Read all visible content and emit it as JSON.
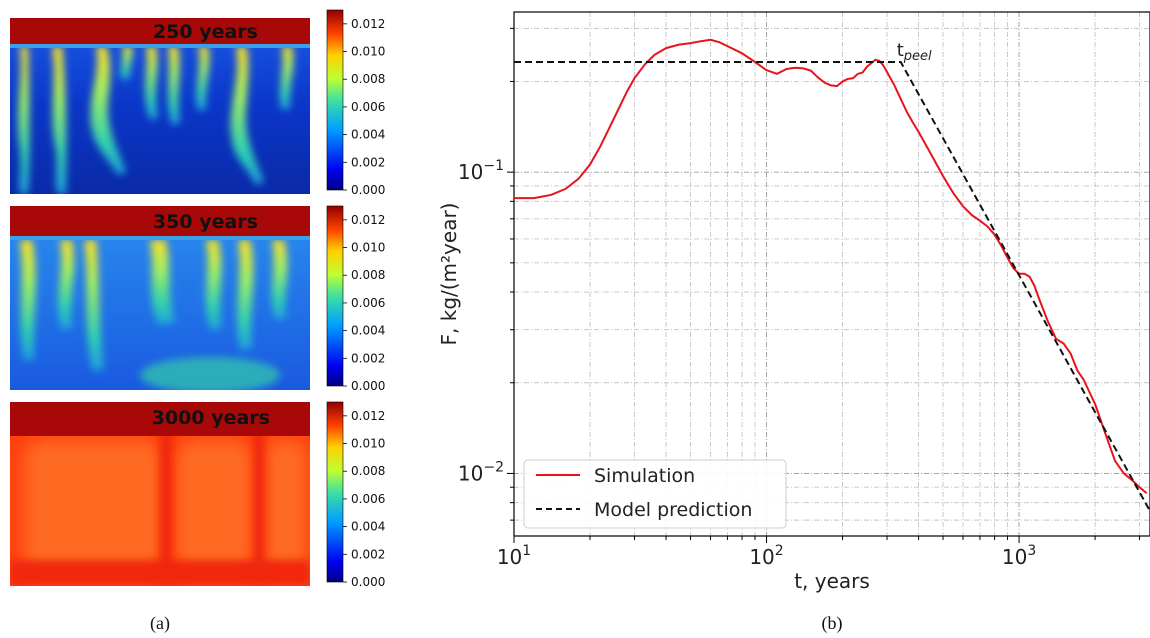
{
  "panel_a": {
    "caption": "(a)",
    "colorbar_ticks": [
      "0.000",
      "0.002",
      "0.004",
      "0.006",
      "0.008",
      "0.010",
      "0.012"
    ],
    "colorbar_range": [
      0.0,
      0.013
    ],
    "colormap": "jet",
    "maps": [
      {
        "label": "250 years",
        "pattern": "fingering, many plumes"
      },
      {
        "label": "350 years",
        "pattern": "fingering, plumes thickening"
      },
      {
        "label": "3000 years",
        "pattern": "nearly saturated, few plumes"
      }
    ]
  },
  "panel_b": {
    "caption": "(b)",
    "annotation": {
      "text": "t",
      "subscript": "peel",
      "x": 340,
      "y": 0.232
    },
    "chart_data": {
      "type": "line",
      "xlabel": "t, years",
      "ylabel": "F, kg/(m²year)",
      "xscale": "log",
      "yscale": "log",
      "xlim": [
        10,
        3300
      ],
      "ylim": [
        0.0062,
        0.34
      ],
      "x_ticks": [
        {
          "value": 10,
          "base": "10",
          "exp": "1"
        },
        {
          "value": 100,
          "base": "10",
          "exp": "2"
        },
        {
          "value": 1000,
          "base": "10",
          "exp": "3"
        }
      ],
      "y_ticks": [
        {
          "value": 0.01,
          "base": "10",
          "exp": "−2"
        },
        {
          "value": 0.1,
          "base": "10",
          "exp": "−1"
        }
      ],
      "grid": true,
      "legend_position": "bottom-left",
      "series": [
        {
          "name": "Simulation",
          "color": "#e8141c",
          "style": "solid",
          "x": [
            10,
            12,
            14,
            16,
            18,
            20,
            22,
            25,
            28,
            30,
            33,
            36,
            40,
            45,
            50,
            55,
            60,
            65,
            70,
            80,
            90,
            100,
            110,
            120,
            130,
            140,
            150,
            160,
            170,
            180,
            190,
            200,
            210,
            220,
            230,
            240,
            250,
            260,
            270,
            280,
            290,
            300,
            320,
            340,
            360,
            380,
            400,
            450,
            500,
            550,
            600,
            650,
            700,
            750,
            800,
            850,
            900,
            950,
            1000,
            1050,
            1100,
            1150,
            1200,
            1300,
            1400,
            1500,
            1600,
            1700,
            1800,
            2000,
            2200,
            2400,
            2600,
            2800,
            3000,
            3200
          ],
          "y": [
            0.082,
            0.082,
            0.084,
            0.088,
            0.095,
            0.106,
            0.122,
            0.152,
            0.185,
            0.205,
            0.228,
            0.245,
            0.258,
            0.265,
            0.268,
            0.272,
            0.275,
            0.27,
            0.262,
            0.248,
            0.232,
            0.218,
            0.212,
            0.22,
            0.222,
            0.221,
            0.217,
            0.206,
            0.198,
            0.194,
            0.193,
            0.2,
            0.204,
            0.205,
            0.212,
            0.214,
            0.224,
            0.23,
            0.236,
            0.234,
            0.226,
            0.215,
            0.195,
            0.175,
            0.158,
            0.146,
            0.136,
            0.114,
            0.097,
            0.085,
            0.077,
            0.072,
            0.069,
            0.066,
            0.062,
            0.057,
            0.052,
            0.048,
            0.046,
            0.046,
            0.045,
            0.042,
            0.038,
            0.032,
            0.028,
            0.027,
            0.025,
            0.022,
            0.0205,
            0.017,
            0.0135,
            0.011,
            0.01,
            0.0095,
            0.009,
            0.0086
          ]
        },
        {
          "name": "Model prediction",
          "color": "#111111",
          "style": "dashed",
          "x": [
            10,
            340,
            3300
          ],
          "y": [
            0.232,
            0.232,
            0.0075
          ]
        }
      ]
    }
  }
}
